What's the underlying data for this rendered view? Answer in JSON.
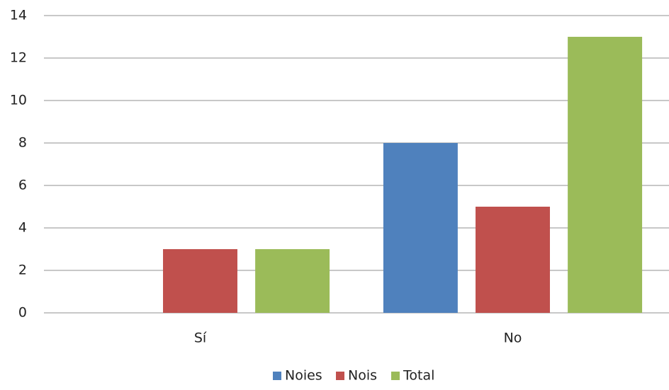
{
  "chart_data": {
    "type": "bar",
    "categories": [
      "Sí",
      "No"
    ],
    "series": [
      {
        "name": "Noies",
        "color": "#4f81bd",
        "values": [
          0,
          8
        ]
      },
      {
        "name": "Nois",
        "color": "#c0504d",
        "values": [
          3,
          5
        ]
      },
      {
        "name": "Total",
        "color": "#9bbb59",
        "values": [
          3,
          13
        ]
      }
    ],
    "ylim": [
      0,
      14
    ],
    "yticks": [
      0,
      2,
      4,
      6,
      8,
      10,
      12,
      14
    ],
    "grid": true,
    "legend": "bottom"
  }
}
